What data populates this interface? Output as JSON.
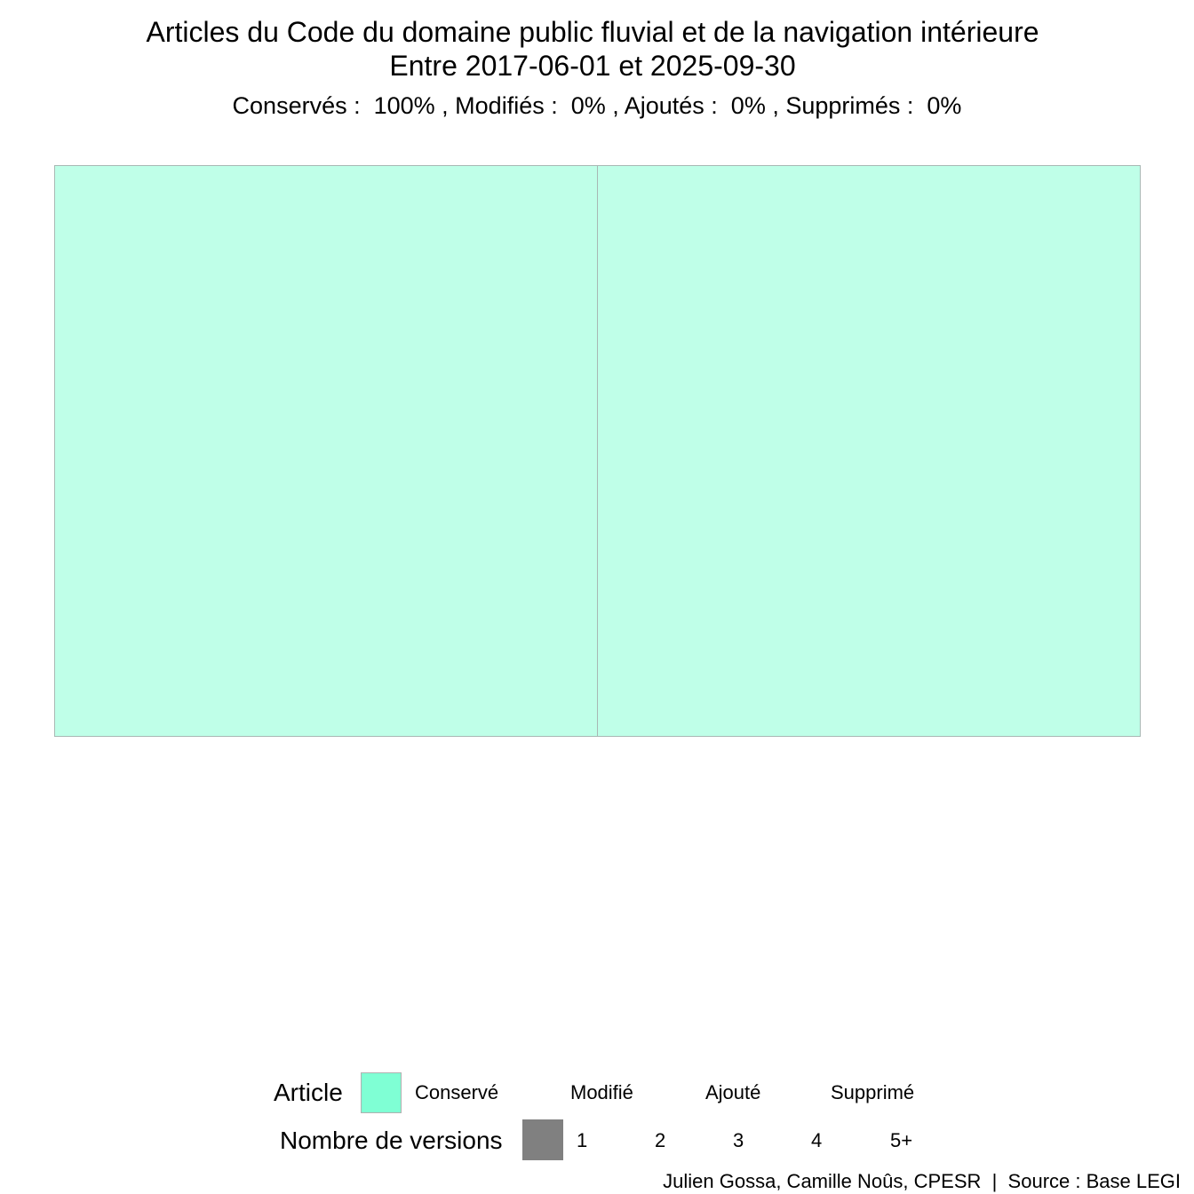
{
  "chart_data": {
    "type": "treemap",
    "title": "Articles du Code du domaine public fluvial et de la navigation intérieure",
    "period": "Entre 2017-06-01 et 2025-09-30",
    "summary": "Conservés :  100% , Modifiés :  0% , Ajoutés :  0% , Supprimés :  0%",
    "shares": [
      {
        "status": "Conservés",
        "percent": 100
      },
      {
        "status": "Modifiés",
        "percent": 0
      },
      {
        "status": "Ajoutés",
        "percent": 0
      },
      {
        "status": "Supprimés",
        "percent": 0
      }
    ],
    "tiles": [
      {
        "status": "Conservé",
        "versions": 1,
        "weight": 1
      },
      {
        "status": "Conservé",
        "versions": 1,
        "weight": 1
      }
    ],
    "legend": {
      "article": {
        "title": "Article",
        "entries": [
          {
            "label": "Conservé",
            "color": "#7fffd4"
          },
          {
            "label": "Modifié",
            "color": null
          },
          {
            "label": "Ajouté",
            "color": null
          },
          {
            "label": "Supprimé",
            "color": null
          }
        ]
      },
      "versions": {
        "title": "Nombre de versions",
        "key_color": "#808080",
        "entries": [
          "1",
          "2",
          "3",
          "4",
          "5+"
        ]
      }
    },
    "caption": "Julien Gossa, Camille Noûs, CPESR  |  Source : Base LEGI"
  },
  "colors": {
    "conserve_fill": "#bfffe8",
    "tile_border": "#a8b8b4",
    "conserve_key": "#7fffd4",
    "versions_key": "#808080"
  }
}
